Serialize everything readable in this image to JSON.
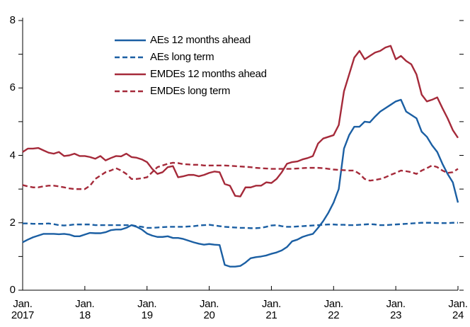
{
  "chart_data": {
    "type": "line",
    "x": [
      2017,
      2017.083,
      2017.167,
      2017.25,
      2017.333,
      2017.417,
      2017.5,
      2017.583,
      2017.667,
      2017.75,
      2017.833,
      2017.917,
      2018,
      2018.083,
      2018.167,
      2018.25,
      2018.333,
      2018.417,
      2018.5,
      2018.583,
      2018.667,
      2018.75,
      2018.833,
      2018.917,
      2019,
      2019.083,
      2019.167,
      2019.25,
      2019.333,
      2019.417,
      2019.5,
      2019.583,
      2019.667,
      2019.75,
      2019.833,
      2019.917,
      2020,
      2020.083,
      2020.167,
      2020.25,
      2020.333,
      2020.417,
      2020.5,
      2020.583,
      2020.667,
      2020.75,
      2020.833,
      2020.917,
      2021,
      2021.083,
      2021.167,
      2021.25,
      2021.333,
      2021.417,
      2021.5,
      2021.583,
      2021.667,
      2021.75,
      2021.833,
      2021.917,
      2022,
      2022.083,
      2022.167,
      2022.25,
      2022.333,
      2022.417,
      2022.5,
      2022.583,
      2022.667,
      2022.75,
      2022.833,
      2022.917,
      2023,
      2023.083,
      2023.167,
      2023.25,
      2023.333,
      2023.417,
      2023.5,
      2023.583,
      2023.667,
      2023.75,
      2023.833,
      2023.917,
      2024
    ],
    "series": [
      {
        "name": "AEs 12 months ahead",
        "color": "#1b5fa3",
        "linestyle": "solid",
        "values": [
          1.42,
          1.5,
          1.57,
          1.62,
          1.67,
          1.67,
          1.67,
          1.66,
          1.67,
          1.65,
          1.6,
          1.6,
          1.65,
          1.7,
          1.69,
          1.69,
          1.72,
          1.78,
          1.8,
          1.8,
          1.85,
          1.93,
          1.88,
          1.8,
          1.68,
          1.62,
          1.58,
          1.58,
          1.6,
          1.55,
          1.55,
          1.52,
          1.47,
          1.42,
          1.38,
          1.35,
          1.37,
          1.35,
          1.34,
          0.75,
          0.7,
          0.7,
          0.72,
          0.82,
          0.95,
          0.98,
          1.0,
          1.03,
          1.08,
          1.12,
          1.18,
          1.28,
          1.45,
          1.5,
          1.58,
          1.63,
          1.67,
          1.85,
          2.05,
          2.3,
          2.6,
          3.0,
          4.2,
          4.6,
          4.85,
          4.85,
          5.0,
          4.98,
          5.15,
          5.3,
          5.4,
          5.5,
          5.6,
          5.65,
          5.3,
          5.2,
          5.1,
          4.7,
          4.55,
          4.3,
          4.1,
          3.75,
          3.45,
          3.2,
          2.6
        ]
      },
      {
        "name": "AEs long term",
        "color": "#1b5fa3",
        "linestyle": "dashed",
        "values": [
          1.98,
          1.98,
          1.97,
          1.97,
          1.97,
          1.98,
          1.96,
          1.93,
          1.92,
          1.93,
          1.95,
          1.95,
          1.95,
          1.95,
          1.93,
          1.93,
          1.93,
          1.93,
          1.93,
          1.93,
          1.93,
          1.93,
          1.9,
          1.88,
          1.85,
          1.85,
          1.86,
          1.87,
          1.88,
          1.88,
          1.88,
          1.88,
          1.89,
          1.9,
          1.92,
          1.93,
          1.94,
          1.92,
          1.9,
          1.88,
          1.87,
          1.86,
          1.85,
          1.85,
          1.84,
          1.84,
          1.85,
          1.88,
          1.92,
          1.93,
          1.9,
          1.88,
          1.88,
          1.89,
          1.9,
          1.91,
          1.92,
          1.93,
          1.94,
          1.95,
          1.95,
          1.94,
          1.94,
          1.93,
          1.93,
          1.94,
          1.95,
          1.96,
          1.95,
          1.93,
          1.93,
          1.94,
          1.95,
          1.96,
          1.97,
          1.98,
          1.99,
          2.0,
          2.0,
          2.0,
          1.99,
          1.99,
          1.99,
          2.0,
          2.0
        ]
      },
      {
        "name": "EMDEs 12 months ahead",
        "color": "#a52a3a",
        "linestyle": "solid",
        "values": [
          4.1,
          4.2,
          4.2,
          4.22,
          4.15,
          4.08,
          4.05,
          4.1,
          3.98,
          4.0,
          4.05,
          3.98,
          3.98,
          3.95,
          3.9,
          3.98,
          3.85,
          3.92,
          3.98,
          3.97,
          4.05,
          3.95,
          3.93,
          3.88,
          3.8,
          3.6,
          3.45,
          3.5,
          3.65,
          3.68,
          3.35,
          3.38,
          3.42,
          3.42,
          3.38,
          3.42,
          3.48,
          3.52,
          3.5,
          3.15,
          3.1,
          2.8,
          2.78,
          3.05,
          3.05,
          3.1,
          3.1,
          3.2,
          3.18,
          3.3,
          3.5,
          3.75,
          3.8,
          3.82,
          3.88,
          3.92,
          3.98,
          4.35,
          4.5,
          4.55,
          4.6,
          4.9,
          5.9,
          6.4,
          6.9,
          7.1,
          6.85,
          6.95,
          7.05,
          7.1,
          7.2,
          7.25,
          6.85,
          6.95,
          6.8,
          6.7,
          6.4,
          5.8,
          5.6,
          5.65,
          5.72,
          5.4,
          5.1,
          4.75,
          4.52
        ]
      },
      {
        "name": "EMDEs long term",
        "color": "#a52a3a",
        "linestyle": "dashed",
        "values": [
          3.12,
          3.08,
          3.05,
          3.05,
          3.08,
          3.1,
          3.1,
          3.08,
          3.05,
          3.02,
          3.0,
          3.0,
          3.0,
          3.1,
          3.3,
          3.4,
          3.5,
          3.55,
          3.62,
          3.55,
          3.45,
          3.3,
          3.3,
          3.32,
          3.35,
          3.5,
          3.65,
          3.7,
          3.75,
          3.78,
          3.77,
          3.74,
          3.73,
          3.72,
          3.72,
          3.7,
          3.7,
          3.7,
          3.7,
          3.7,
          3.69,
          3.68,
          3.67,
          3.66,
          3.65,
          3.63,
          3.62,
          3.61,
          3.6,
          3.6,
          3.6,
          3.6,
          3.6,
          3.61,
          3.62,
          3.63,
          3.63,
          3.63,
          3.62,
          3.6,
          3.58,
          3.57,
          3.56,
          3.55,
          3.55,
          3.45,
          3.3,
          3.25,
          3.27,
          3.3,
          3.35,
          3.42,
          3.48,
          3.55,
          3.53,
          3.5,
          3.45,
          3.55,
          3.62,
          3.7,
          3.65,
          3.55,
          3.48,
          3.5,
          3.6
        ]
      }
    ],
    "xlim": [
      2017,
      2024
    ],
    "xticks": [
      {
        "value": 2017,
        "label": "Jan.\n2017"
      },
      {
        "value": 2018,
        "label": "Jan.\n18"
      },
      {
        "value": 2019,
        "label": "Jan.\n19"
      },
      {
        "value": 2020,
        "label": "Jan.\n20"
      },
      {
        "value": 2021,
        "label": "Jan.\n21"
      },
      {
        "value": 2022,
        "label": "Jan.\n22"
      },
      {
        "value": 2023,
        "label": "Jan.\n23"
      },
      {
        "value": 2024,
        "label": "Jan.\n24"
      }
    ],
    "ylim": [
      0,
      8
    ],
    "yticks": [
      0,
      2,
      4,
      6,
      8
    ],
    "yminorticks": [
      1,
      3,
      5,
      7
    ],
    "grid": false,
    "legend": "upper left"
  }
}
